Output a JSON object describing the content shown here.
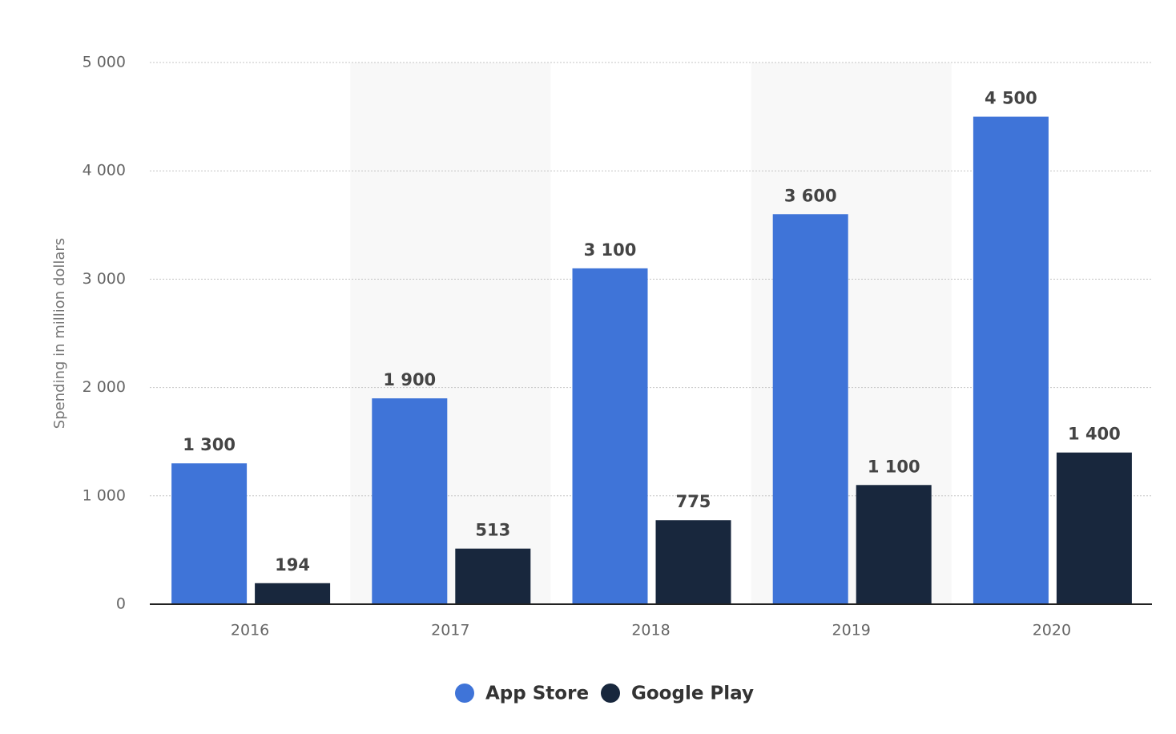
{
  "chart_data": {
    "type": "bar",
    "y_label": "Spending in million dollars",
    "categories": [
      "2016",
      "2017",
      "2018",
      "2019",
      "2020"
    ],
    "series": [
      {
        "name": "App Store",
        "color": "#3f74d8",
        "values": [
          1300,
          1900,
          3100,
          3600,
          4500
        ],
        "value_labels": [
          "1 300",
          "1 900",
          "3 100",
          "3 600",
          "4 500"
        ]
      },
      {
        "name": "Google Play",
        "color": "#18273d",
        "values": [
          194,
          513,
          775,
          1100,
          1400
        ],
        "value_labels": [
          "194",
          "513",
          "775",
          "1 100",
          "1 400"
        ]
      }
    ],
    "ylim": [
      0,
      5000
    ],
    "yticks": [
      0,
      {
        "value": 1000,
        "label": "1 000"
      },
      {
        "value": 2000,
        "label": "2 000"
      },
      {
        "value": 3000,
        "label": "3 000"
      },
      {
        "value": 4000,
        "label": "4 000"
      },
      {
        "value": 5000,
        "label": "5 000"
      }
    ],
    "grid": true,
    "legend": "bottom"
  }
}
